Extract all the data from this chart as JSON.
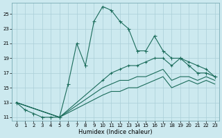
{
  "xlabel": "Humidex (Indice chaleur)",
  "ylabel": "",
  "bg_color": "#cce9ef",
  "grid_color": "#aacfd8",
  "line_color": "#1a6b5a",
  "xlim": [
    -0.5,
    23.5
  ],
  "ylim": [
    10.5,
    26.5
  ],
  "xticks": [
    0,
    1,
    2,
    3,
    4,
    5,
    6,
    7,
    8,
    9,
    10,
    11,
    12,
    13,
    14,
    15,
    16,
    17,
    18,
    19,
    20,
    21,
    22,
    23
  ],
  "yticks": [
    11,
    13,
    15,
    17,
    19,
    21,
    23,
    25
  ],
  "line1_x": [
    0,
    1,
    2,
    3,
    4,
    5,
    6,
    7,
    8,
    9,
    10,
    11,
    12,
    13,
    14,
    15,
    16,
    17,
    18,
    19,
    20,
    21,
    22,
    23
  ],
  "line1_y": [
    13,
    12,
    11.5,
    11,
    11,
    11,
    15.5,
    21,
    18,
    24,
    26,
    25.5,
    24,
    23,
    20,
    20,
    22,
    20,
    19,
    19,
    18,
    17,
    17,
    16.5
  ],
  "line2_x": [
    0,
    5,
    10,
    11,
    12,
    13,
    14,
    15,
    16,
    17,
    18,
    19,
    20,
    21,
    22,
    23
  ],
  "line2_y": [
    13,
    11,
    16,
    17,
    17.5,
    18,
    18,
    18.5,
    19,
    19,
    18,
    19,
    18.5,
    18,
    17.5,
    16.5
  ],
  "line3_x": [
    0,
    5,
    10,
    11,
    12,
    13,
    14,
    15,
    16,
    17,
    18,
    19,
    20,
    21,
    22,
    23
  ],
  "line3_y": [
    13,
    11,
    15,
    15.5,
    16,
    16,
    16.5,
    16.5,
    17,
    17.5,
    16,
    16.5,
    16.5,
    16,
    16.5,
    16
  ],
  "line4_x": [
    0,
    5,
    10,
    11,
    12,
    13,
    14,
    15,
    16,
    17,
    18,
    19,
    20,
    21,
    22,
    23
  ],
  "line4_y": [
    13,
    11,
    14,
    14.5,
    14.5,
    15,
    15,
    15.5,
    16,
    16.5,
    15,
    15.5,
    16,
    15.5,
    16,
    15.5
  ]
}
